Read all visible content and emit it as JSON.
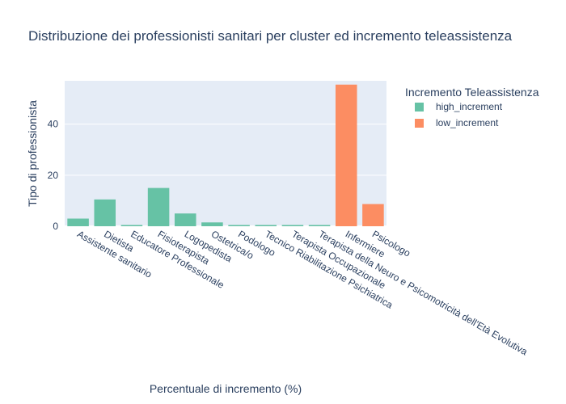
{
  "chart_data": {
    "type": "bar",
    "title": "Distribuzione dei professionisti sanitari per cluster ed incremento teleassistenza",
    "xlabel": "Percentuale di incremento (%)",
    "ylabel": "Tipo di professionista",
    "ylim": [
      0,
      57
    ],
    "yticks": [
      0,
      20,
      40
    ],
    "grid": true,
    "legend": {
      "title": "Incremento Teleassistenza",
      "position": "right"
    },
    "categories": [
      "Assistente sanitario",
      "Dietista",
      "Educatore Professionale",
      "Fisioterapista",
      "Logopedista",
      "Ostetrica/o",
      "Podologo",
      "Tecnico Riabilitazione Psichiatrica",
      "Terapista Occupazionale",
      "Terapista della Neuro e Psicomotricità dell'Età Evolutiva",
      "Infermiere",
      "Psicologo"
    ],
    "series": [
      {
        "name": "high_increment",
        "color": "#66c2a5",
        "values": [
          3,
          10.5,
          0.5,
          15,
          5,
          1.5,
          0.5,
          0.5,
          0.5,
          0.5,
          null,
          null
        ]
      },
      {
        "name": "low_increment",
        "color": "#fc8d62",
        "values": [
          null,
          null,
          null,
          null,
          null,
          null,
          null,
          null,
          null,
          null,
          55.5,
          8.7
        ]
      }
    ]
  }
}
